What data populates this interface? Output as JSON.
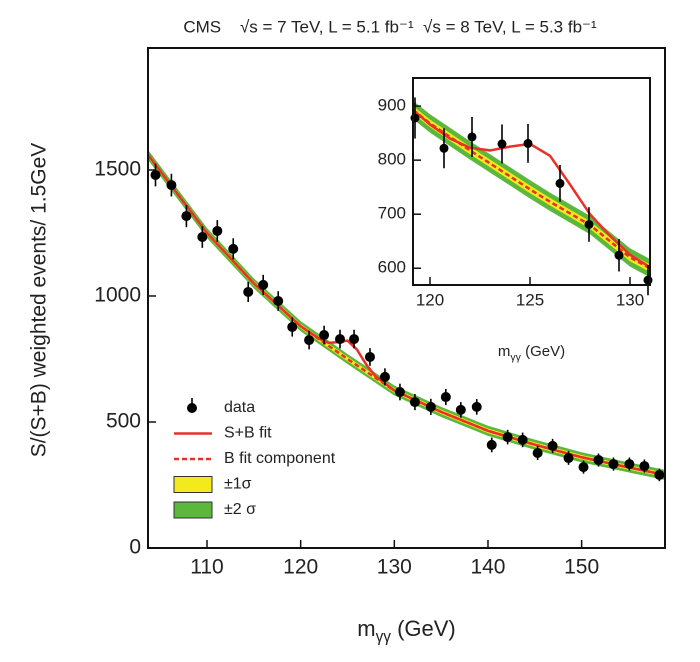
{
  "chart_data": [
    {
      "type": "scatter",
      "title": "CMS    √s = 7 TeV, L = 5.1 fb⁻¹  √s = 8 TeV, L = 5.3 fb⁻¹",
      "xlabel": [
        "m",
        "γγ",
        " (GeV)"
      ],
      "ylabel": "S/(S+B) weighted events/ 1.5GeV",
      "xlim": [
        103.7,
        158.9
      ],
      "ylim": [
        0,
        1984
      ],
      "xticks": [
        110,
        120,
        130,
        140,
        150
      ],
      "yticks": [
        0,
        500,
        1000,
        1500
      ],
      "legend": "lower left",
      "series": [
        {
          "name": "data",
          "kind": "points",
          "color": "#000000",
          "x": [
            104.5,
            106.2,
            107.8,
            109.5,
            111.1,
            112.8,
            114.4,
            116.0,
            117.6,
            119.1,
            120.9,
            122.5,
            124.2,
            125.7,
            127.4,
            129.0,
            130.6,
            132.2,
            133.9,
            135.5,
            137.1,
            138.8,
            140.4,
            142.1,
            143.7,
            145.3,
            146.9,
            148.6,
            150.2,
            151.8,
            153.4,
            155.1,
            156.7,
            158.3
          ],
          "values": [
            1480,
            1440,
            1317,
            1234,
            1258,
            1187,
            1016,
            1044,
            980,
            877,
            825,
            845,
            829,
            829,
            758,
            679,
            619,
            579,
            560,
            599,
            548,
            560,
            409,
            440,
            429,
            377,
            405,
            357,
            321,
            349,
            333,
            333,
            325,
            290
          ],
          "errors": [
            45,
            45,
            44,
            43,
            43,
            42,
            40,
            40,
            39,
            38,
            37,
            37,
            37,
            37,
            35,
            34,
            33,
            32,
            32,
            32,
            31,
            31,
            29,
            29,
            29,
            28,
            28,
            27,
            26,
            26,
            26,
            26,
            26,
            25
          ]
        },
        {
          "name": "S+B fit",
          "kind": "line",
          "color": "#e8312a",
          "dash": false,
          "x": [
            103.7,
            110,
            115,
            120,
            122,
            123,
            124,
            125,
            126,
            127,
            128,
            130,
            135,
            140,
            145,
            150,
            155,
            158.9
          ],
          "values": [
            1560,
            1250,
            1050,
            880,
            830,
            814,
            817,
            823,
            788,
            728,
            681,
            625,
            540,
            465,
            410,
            360,
            320,
            290
          ]
        },
        {
          "name": "B fit component",
          "kind": "line",
          "color": "#e8312a",
          "dash": true,
          "x": [
            103.7,
            110,
            115,
            120,
            122,
            123,
            124,
            125,
            126,
            127,
            128,
            130,
            135,
            140,
            145,
            150,
            155,
            158.9
          ],
          "values": [
            1560,
            1250,
            1050,
            880,
            828,
            802,
            776,
            750,
            725,
            700,
            675,
            625,
            540,
            465,
            410,
            360,
            320,
            290
          ]
        }
      ],
      "bands": [
        {
          "name": "±2 σ",
          "color": "#5cb83c",
          "halfwidth": 20
        },
        {
          "name": "±1σ",
          "color": "#f2ea1d",
          "halfwidth": 9
        }
      ]
    },
    {
      "type": "scatter",
      "xlabel": [
        "m",
        "γγ",
        " (GeV)"
      ],
      "xlim": [
        119.15,
        131.0
      ],
      "ylim": [
        569,
        952
      ],
      "xticks": [
        120,
        125,
        130
      ],
      "yticks": [
        600,
        700,
        800,
        900
      ],
      "series": [
        {
          "kind": "points",
          "color": "#000000",
          "x": [
            119.25,
            120.7,
            122.1,
            123.6,
            124.9,
            126.5,
            127.95,
            129.45,
            130.9
          ],
          "values": [
            878,
            822,
            843,
            830,
            831,
            757,
            681,
            624,
            578
          ],
          "errors": [
            38,
            37,
            37,
            36,
            36,
            34,
            32,
            30,
            28
          ]
        },
        {
          "kind": "line",
          "color": "#e8312a",
          "dash": false,
          "x": [
            119.15,
            120,
            121,
            122,
            123,
            124,
            125,
            126,
            127,
            128,
            129,
            130,
            131
          ],
          "values": [
            893,
            866,
            840,
            823,
            818,
            825,
            830,
            808,
            755,
            700,
            660,
            625,
            602
          ]
        },
        {
          "kind": "line",
          "color": "#e8312a",
          "dash": true,
          "x": [
            119.15,
            120,
            122,
            124,
            125,
            126,
            128,
            130,
            131
          ],
          "values": [
            893,
            868,
            818,
            770,
            746,
            723,
            680,
            620,
            600
          ]
        }
      ],
      "bands": [
        {
          "color": "#5cb83c",
          "halfwidth": 17
        },
        {
          "color": "#f2ea1d",
          "halfwidth": 7
        }
      ]
    }
  ]
}
